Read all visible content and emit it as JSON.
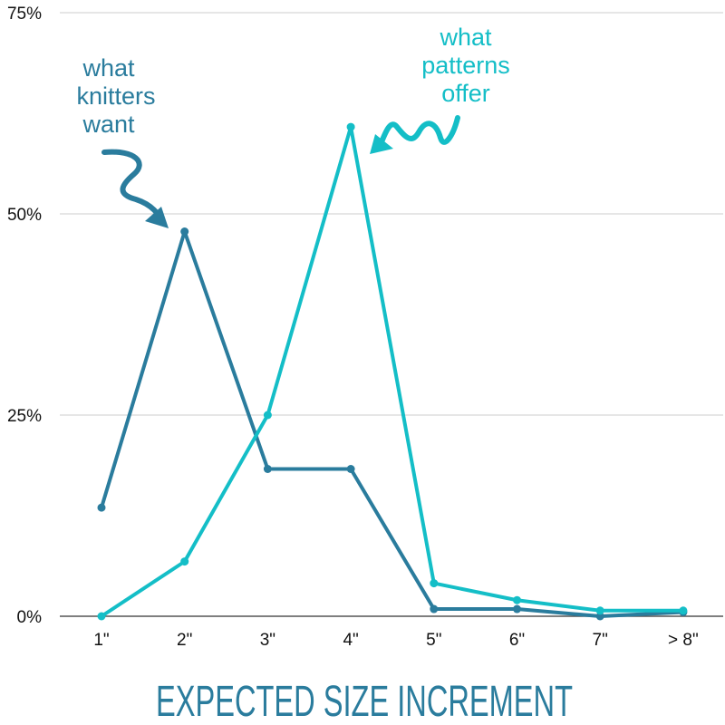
{
  "chart_data": {
    "type": "line",
    "categories": [
      "1\"",
      "2\"",
      "3\"",
      "4\"",
      "5\"",
      "6\"",
      "7\"",
      "> 8\""
    ],
    "series": [
      {
        "name": "what knitters want",
        "color": "#2a7c9d",
        "values": [
          13.5,
          47.8,
          18.3,
          18.3,
          0.9,
          0.9,
          0.0,
          0.5
        ]
      },
      {
        "name": "what patterns offer",
        "color": "#14bec7",
        "values": [
          0.0,
          6.8,
          25.0,
          60.8,
          4.1,
          2.0,
          0.7,
          0.7
        ]
      }
    ],
    "ylim": [
      0,
      75
    ],
    "yticks": [
      {
        "value": 0,
        "label": "0%"
      },
      {
        "value": 25,
        "label": "25%"
      },
      {
        "value": 50,
        "label": "50%"
      },
      {
        "value": 75,
        "label": "75%"
      }
    ],
    "xlabel": "EXPECTED SIZE INCREMENT",
    "ylabel": "",
    "title": "",
    "grid": true,
    "annotations": [
      {
        "lines": [
          "what",
          "knitters",
          "want"
        ],
        "color": "#2a7c9d",
        "points_to": "what knitters want at 2\""
      },
      {
        "lines": [
          "what",
          "patterns",
          "offer"
        ],
        "color": "#14bec7",
        "points_to": "what patterns offer at 4\""
      }
    ]
  }
}
